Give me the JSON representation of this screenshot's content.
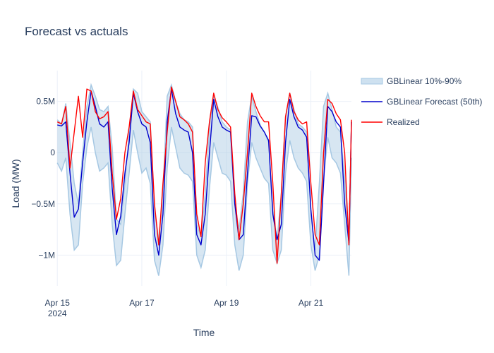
{
  "chart_data": {
    "type": "line",
    "title": "Forecast vs actuals",
    "xlabel": "Time",
    "ylabel": "Load (MW)",
    "x_start": "2024-04-15",
    "x_end": "2024-04-22 00:00",
    "xlim": [
      -0.02,
      6.96
    ],
    "ylim": [
      -1.3,
      0.8
    ],
    "x_ticks": [
      {
        "pos": 0,
        "label": "Apr 15",
        "sub": "2024"
      },
      {
        "pos": 2,
        "label": "Apr 17"
      },
      {
        "pos": 4,
        "label": "Apr 19"
      },
      {
        "pos": 6,
        "label": "Apr 21"
      }
    ],
    "y_ticks": [
      {
        "value": 0.5,
        "label": "0.5M"
      },
      {
        "value": 0,
        "label": "0"
      },
      {
        "value": -0.5,
        "label": "−0.5M"
      },
      {
        "value": -1,
        "label": "−1M"
      }
    ],
    "grid": true,
    "legend_position": "right",
    "colors": {
      "band": "#a6c8e3",
      "forecast": "#0000cc",
      "realized": "#ff0000"
    },
    "series": [
      {
        "name": "GBLinear 10%-90%",
        "kind": "band",
        "x": [
          0,
          0.1,
          0.2,
          0.3,
          0.4,
          0.5,
          0.6,
          0.7,
          0.8,
          0.9,
          1.0,
          1.1,
          1.2,
          1.3,
          1.4,
          1.5,
          1.6,
          1.7,
          1.8,
          1.9,
          2.0,
          2.1,
          2.2,
          2.3,
          2.4,
          2.5,
          2.6,
          2.7,
          2.8,
          2.9,
          3.0,
          3.1,
          3.2,
          3.3,
          3.4,
          3.5,
          3.6,
          3.7,
          3.8,
          3.9,
          4.0,
          4.1,
          4.2,
          4.3,
          4.4,
          4.5,
          4.6,
          4.7,
          4.8,
          4.9,
          5.0,
          5.1,
          5.2,
          5.3,
          5.4,
          5.5,
          5.6,
          5.7,
          5.8,
          5.9,
          6.0,
          6.1,
          6.2,
          6.3,
          6.4,
          6.5,
          6.6,
          6.7,
          6.8,
          6.9,
          6.96
        ],
        "upper": [
          0.32,
          0.28,
          0.48,
          0.1,
          -0.3,
          -0.5,
          0.0,
          0.45,
          0.66,
          0.55,
          0.42,
          0.4,
          0.45,
          0.05,
          -0.65,
          -0.7,
          -0.3,
          0.2,
          0.62,
          0.58,
          0.4,
          0.35,
          0.3,
          -0.55,
          -0.85,
          -0.4,
          0.55,
          0.66,
          0.5,
          0.38,
          0.32,
          0.3,
          0.25,
          -0.7,
          -0.82,
          -0.4,
          0.25,
          0.56,
          0.44,
          0.3,
          0.25,
          0.22,
          -0.5,
          -0.75,
          -0.4,
          0.3,
          0.55,
          0.4,
          0.27,
          0.2,
          0.1,
          -0.55,
          -0.85,
          -0.4,
          0.35,
          0.58,
          0.42,
          0.28,
          0.25,
          0.2,
          -0.6,
          -0.95,
          -0.3,
          0.45,
          0.58,
          0.42,
          0.25,
          0.2,
          -0.25,
          -0.85,
          0.3
        ],
        "lower": [
          -0.1,
          -0.18,
          -0.05,
          -0.6,
          -0.95,
          -0.9,
          -0.3,
          0.05,
          0.25,
          0.0,
          -0.18,
          -0.15,
          -0.1,
          -0.7,
          -1.1,
          -1.05,
          -0.6,
          -0.2,
          0.22,
          0.0,
          -0.2,
          -0.15,
          -0.3,
          -1.05,
          -1.2,
          -0.9,
          -0.15,
          0.25,
          0.05,
          -0.15,
          -0.2,
          -0.22,
          -0.28,
          -1.0,
          -1.12,
          -0.95,
          -0.35,
          0.1,
          -0.05,
          -0.2,
          -0.22,
          -0.28,
          -0.9,
          -1.15,
          -1.0,
          -0.3,
          0.1,
          -0.05,
          -0.15,
          -0.25,
          -0.3,
          -0.95,
          -1.08,
          -0.95,
          -0.2,
          0.12,
          -0.05,
          -0.15,
          -0.2,
          -0.28,
          -0.9,
          -1.15,
          -1.0,
          -0.25,
          0.15,
          -0.05,
          -0.1,
          -0.2,
          -0.7,
          -1.2,
          -0.05
        ]
      },
      {
        "name": "GBLinear Forecast (50th)",
        "kind": "line",
        "x": [
          0,
          0.1,
          0.2,
          0.3,
          0.4,
          0.5,
          0.6,
          0.7,
          0.8,
          0.9,
          1.0,
          1.1,
          1.2,
          1.3,
          1.4,
          1.5,
          1.6,
          1.7,
          1.8,
          1.9,
          2.0,
          2.1,
          2.2,
          2.3,
          2.4,
          2.5,
          2.6,
          2.7,
          2.8,
          2.9,
          3.0,
          3.1,
          3.2,
          3.3,
          3.4,
          3.5,
          3.6,
          3.7,
          3.8,
          3.9,
          4.0,
          4.1,
          4.2,
          4.3,
          4.4,
          4.5,
          4.6,
          4.7,
          4.8,
          4.9,
          5.0,
          5.1,
          5.2,
          5.3,
          5.4,
          5.5,
          5.6,
          5.7,
          5.8,
          5.9,
          6.0,
          6.1,
          6.2,
          6.3,
          6.4,
          6.5,
          6.6,
          6.7,
          6.8,
          6.9,
          6.96
        ],
        "values": [
          0.27,
          0.26,
          0.3,
          -0.2,
          -0.63,
          -0.55,
          -0.1,
          0.3,
          0.6,
          0.45,
          0.28,
          0.25,
          0.3,
          -0.35,
          -0.8,
          -0.62,
          -0.2,
          0.1,
          0.58,
          0.4,
          0.28,
          0.25,
          0.1,
          -0.8,
          -1.0,
          -0.6,
          0.3,
          0.62,
          0.38,
          0.25,
          0.22,
          0.2,
          0.0,
          -0.8,
          -0.9,
          -0.6,
          0.0,
          0.52,
          0.35,
          0.25,
          0.22,
          0.2,
          -0.5,
          -0.85,
          -0.8,
          -0.2,
          0.36,
          0.35,
          0.26,
          0.2,
          0.12,
          -0.6,
          -0.85,
          -0.7,
          0.1,
          0.52,
          0.35,
          0.25,
          0.22,
          0.15,
          -0.55,
          -1.0,
          -1.05,
          -0.3,
          0.45,
          0.4,
          0.3,
          0.25,
          -0.5,
          -0.88,
          0.3
        ]
      },
      {
        "name": "Realized",
        "kind": "line",
        "x": [
          0,
          0.1,
          0.2,
          0.3,
          0.4,
          0.5,
          0.6,
          0.7,
          0.8,
          0.9,
          1.0,
          1.1,
          1.2,
          1.3,
          1.4,
          1.5,
          1.6,
          1.7,
          1.8,
          1.9,
          2.0,
          2.1,
          2.2,
          2.3,
          2.4,
          2.5,
          2.6,
          2.7,
          2.8,
          2.9,
          3.0,
          3.1,
          3.2,
          3.3,
          3.4,
          3.5,
          3.6,
          3.7,
          3.8,
          3.9,
          4.0,
          4.1,
          4.2,
          4.3,
          4.4,
          4.5,
          4.6,
          4.7,
          4.8,
          4.9,
          5.0,
          5.1,
          5.2,
          5.3,
          5.4,
          5.5,
          5.6,
          5.7,
          5.8,
          5.9,
          6.0,
          6.1,
          6.2,
          6.3,
          6.4,
          6.5,
          6.6,
          6.7,
          6.8,
          6.9,
          6.96
        ],
        "values": [
          0.3,
          0.28,
          0.45,
          -0.15,
          0.2,
          0.55,
          0.15,
          0.62,
          0.6,
          0.4,
          0.33,
          0.35,
          0.4,
          -0.2,
          -0.65,
          -0.45,
          0.0,
          0.25,
          0.6,
          0.42,
          0.36,
          0.3,
          0.28,
          -0.5,
          -0.9,
          -0.3,
          0.2,
          0.64,
          0.5,
          0.35,
          0.32,
          0.28,
          0.2,
          -0.6,
          -0.82,
          -0.1,
          0.3,
          0.58,
          0.42,
          0.34,
          0.3,
          0.25,
          -0.4,
          -0.85,
          -0.5,
          0.0,
          0.58,
          0.45,
          0.36,
          0.3,
          0.3,
          -0.3,
          -1.08,
          -0.4,
          0.35,
          0.58,
          0.4,
          0.32,
          0.28,
          0.3,
          -0.3,
          -0.8,
          -0.9,
          0.0,
          0.52,
          0.48,
          0.38,
          0.32,
          0.0,
          -0.9,
          0.32
        ]
      }
    ]
  }
}
